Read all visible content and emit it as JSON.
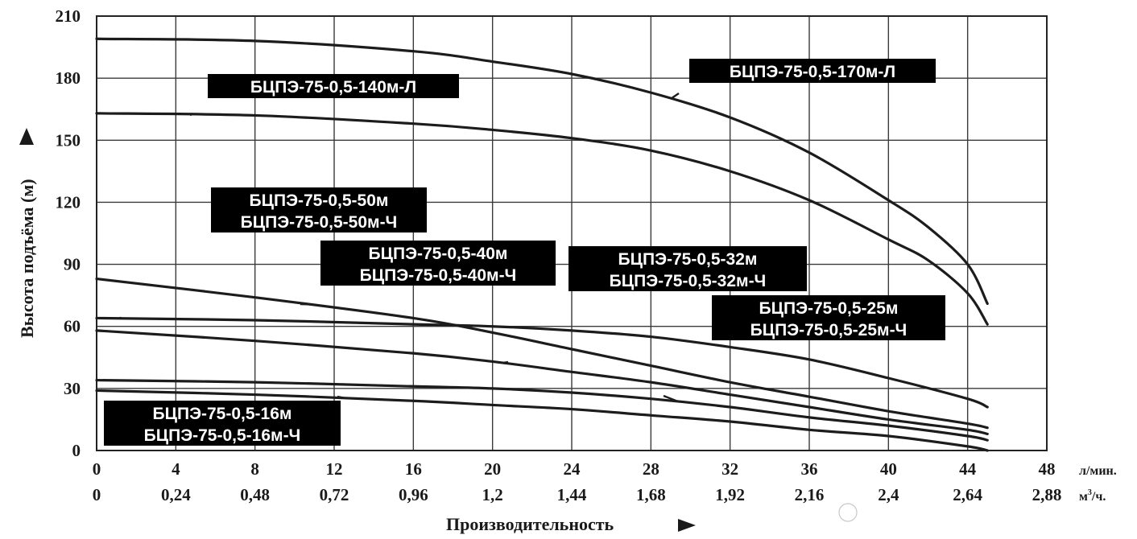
{
  "chart_data": {
    "type": "line",
    "title": "",
    "xlabel": "Производительность",
    "ylabel": "Высота подъёма (м)",
    "xlim": [
      0,
      48
    ],
    "ylim": [
      0,
      210
    ],
    "grid": true,
    "x_ticks": [
      0,
      4,
      8,
      12,
      16,
      20,
      24,
      28,
      32,
      36,
      40,
      44,
      48
    ],
    "x_unit": "л/мин.",
    "x2_ticks": [
      "0",
      "0,24",
      "0,48",
      "0,72",
      "0,96",
      "1,2",
      "1,44",
      "1,68",
      "1,92",
      "2,16",
      "2,4",
      "2,64",
      "2,88"
    ],
    "x2_unit_base": "м",
    "x2_unit_sup": "3",
    "x2_unit_tail": "/ч.",
    "y_ticks": [
      0,
      30,
      60,
      90,
      120,
      150,
      180,
      210
    ],
    "series": [
      {
        "name": "БЦПЭ-75-0,5-170м-Л",
        "x": [
          0,
          8,
          16,
          20,
          24,
          28,
          32,
          36,
          40,
          42,
          44,
          45
        ],
        "y": [
          199,
          198,
          193,
          188,
          182,
          173,
          161,
          144,
          121,
          108,
          90,
          71
        ]
      },
      {
        "name": "БЦПЭ-75-0,5-140м-Л",
        "x": [
          0,
          8,
          16,
          20,
          24,
          28,
          32,
          36,
          40,
          42,
          44,
          45
        ],
        "y": [
          163,
          162,
          158,
          155,
          151,
          145,
          135,
          121,
          102,
          92,
          76,
          61
        ]
      },
      {
        "name": "БЦПЭ-75-0,5-50м",
        "x": [
          0,
          8,
          16,
          20,
          24,
          28,
          32,
          36,
          40,
          44,
          45
        ],
        "y": [
          64,
          63,
          61,
          60,
          58,
          55,
          50,
          44,
          35,
          25,
          21
        ]
      },
      {
        "name": "БЦПЭ-75-0,5-40м",
        "x": [
          0,
          8,
          16,
          20,
          24,
          28,
          32,
          36,
          40,
          44,
          45
        ],
        "y": [
          83,
          74,
          64,
          57,
          49,
          41,
          33,
          26,
          19,
          13,
          11
        ]
      },
      {
        "name": "БЦПЭ-75-0,5-32м",
        "x": [
          0,
          8,
          16,
          20,
          24,
          28,
          32,
          36,
          40,
          44,
          45
        ],
        "y": [
          58,
          53,
          47,
          43,
          38,
          33,
          27,
          21,
          15,
          10,
          8
        ]
      },
      {
        "name": "БЦПЭ-75-0,5-25м",
        "x": [
          0,
          8,
          16,
          20,
          24,
          28,
          32,
          36,
          40,
          44,
          45
        ],
        "y": [
          34,
          33,
          31,
          30,
          28,
          25,
          21,
          16,
          12,
          7,
          5
        ]
      },
      {
        "name": "БЦПЭ-75-0,5-16м",
        "x": [
          0,
          8,
          16,
          20,
          24,
          28,
          32,
          36,
          40,
          44,
          45
        ],
        "y": [
          29,
          27,
          24,
          22,
          20,
          17,
          14,
          10,
          7,
          2,
          0
        ]
      }
    ],
    "annotations": [
      {
        "lines": [
          "БЦПЭ-75-0,5-170м-Л"
        ],
        "series": "БЦПЭ-75-0,5-170м-Л"
      },
      {
        "lines": [
          "БЦПЭ-75-0,5-140м-Л"
        ],
        "series": "БЦПЭ-75-0,5-140м-Л"
      },
      {
        "lines": [
          "БЦПЭ-75-0,5-50м",
          "БЦПЭ-75-0,5-50м-Ч"
        ],
        "series": "БЦПЭ-75-0,5-50м"
      },
      {
        "lines": [
          "БЦПЭ-75-0,5-40м",
          "БЦПЭ-75-0,5-40м-Ч"
        ],
        "series": "БЦПЭ-75-0,5-40м"
      },
      {
        "lines": [
          "БЦПЭ-75-0,5-32м",
          "БЦПЭ-75-0,5-32м-Ч"
        ],
        "series": "БЦПЭ-75-0,5-32м"
      },
      {
        "lines": [
          "БЦПЭ-75-0,5-25м",
          "БЦПЭ-75-0,5-25м-Ч"
        ],
        "series": "БЦПЭ-75-0,5-25м"
      },
      {
        "lines": [
          "БЦПЭ-75-0,5-16м",
          "БЦПЭ-75-0,5-16м-Ч"
        ],
        "series": "БЦПЭ-75-0,5-16м"
      }
    ]
  }
}
